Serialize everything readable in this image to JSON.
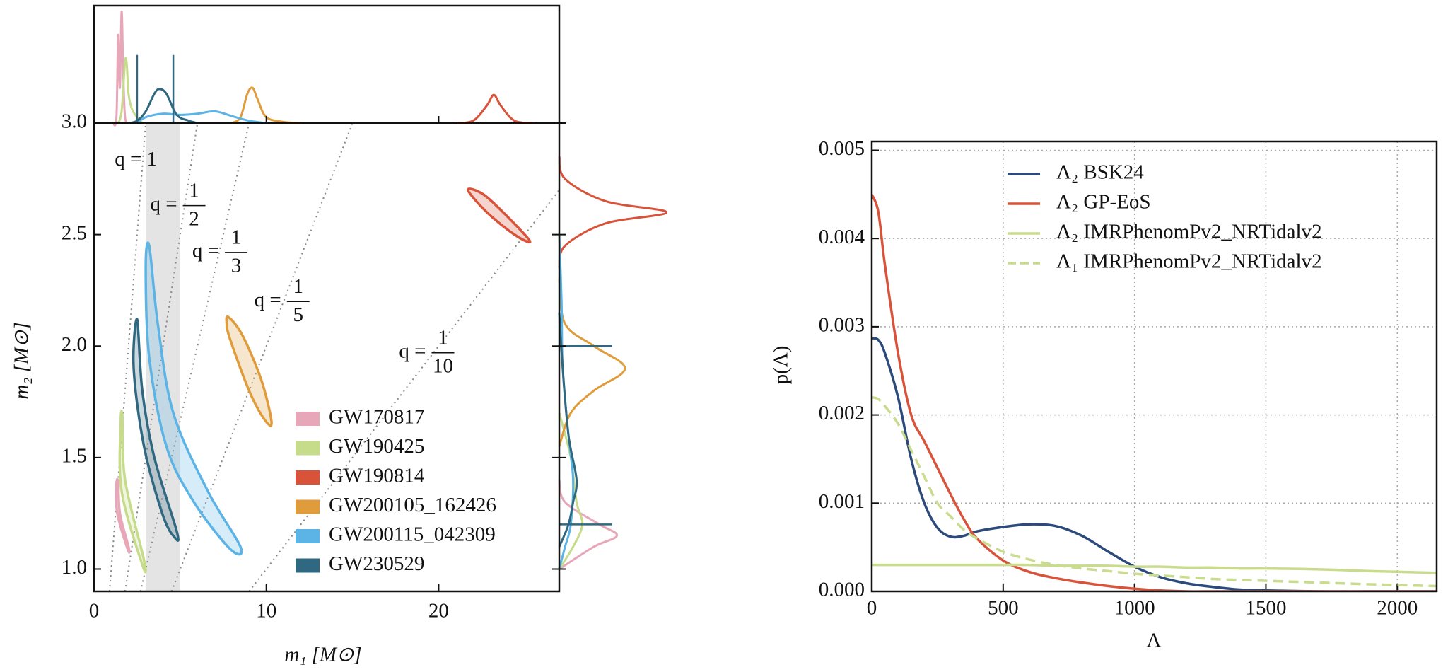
{
  "chart_data": [
    {
      "type": "contour",
      "x_label": "m₁ [M⊙]",
      "y_label": "m₂ [M⊙]",
      "xlim": [
        0,
        27
      ],
      "ylim": [
        0.9,
        3.0
      ],
      "xticks": [
        0,
        10,
        20
      ],
      "yticks": [
        {
          "value": 1,
          "label": "1.0"
        },
        1.5,
        {
          "value": 2,
          "label": "2.0"
        },
        2.5,
        {
          "value": 3,
          "label": "3.0"
        }
      ],
      "marginal_density_lim": [
        0,
        1
      ],
      "shaded_xrange": [
        3,
        5
      ],
      "legend": "lower right",
      "q_lines": [
        {
          "text": "q = 1",
          "q": 1
        },
        {
          "text": "q =",
          "numerator": "1",
          "denominator": "2",
          "q": 0.5
        },
        {
          "text": "q =",
          "numerator": "1",
          "denominator": "3",
          "q": 0.3333
        },
        {
          "text": "q =",
          "numerator": "1",
          "denominator": "5",
          "q": 0.2
        },
        {
          "text": "q =",
          "numerator": "1",
          "denominator": "10",
          "q": 0.1
        }
      ],
      "series": [
        {
          "name": "GW170817",
          "color": "#e8a7b8",
          "x": [
            1.4,
            1.5,
            2.0,
            1.95,
            1.35,
            1.3
          ],
          "y": [
            1.39,
            1.25,
            1.1,
            1.09,
            1.25,
            1.38
          ],
          "m1_marginal": {
            "x": [
              1.1,
              1.3,
              1.4,
              1.5,
              1.6,
              1.7,
              1.8,
              2.0
            ],
            "density": [
              0,
              0.05,
              0.75,
              0.3,
              0.95,
              0.4,
              0.05,
              0
            ]
          },
          "m2_marginal": {
            "y": [
              1.4,
              1.3,
              1.2,
              1.15,
              1.1,
              1.0
            ],
            "density": [
              0,
              0.05,
              0.35,
              0.5,
              0.3,
              0
            ]
          }
        },
        {
          "name": "GW190425",
          "color": "#c6dc8a",
          "x": [
            1.65,
            1.8,
            2.9,
            2.8,
            1.6,
            1.55
          ],
          "y": [
            1.68,
            1.4,
            1.04,
            1.02,
            1.35,
            1.66
          ],
          "m1_marginal": {
            "x": [
              1.4,
              1.6,
              1.8,
              1.9,
              2.0,
              2.2,
              2.5,
              2.8
            ],
            "density": [
              0,
              0.1,
              0.52,
              0.5,
              0.25,
              0.12,
              0.05,
              0
            ]
          },
          "m2_marginal": {
            "y": [
              1.7,
              1.5,
              1.3,
              1.2,
              1.1,
              1.0
            ],
            "density": [
              0,
              0.1,
              0.15,
              0.2,
              0.12,
              0
            ]
          }
        },
        {
          "name": "GW190814",
          "color": "#d9533b",
          "x": [
            21.7,
            22.6,
            24.0,
            25.3,
            24.4,
            22.8
          ],
          "y": [
            2.7,
            2.68,
            2.58,
            2.47,
            2.5,
            2.6
          ],
          "m1_marginal": {
            "x": [
              21,
              22,
              22.8,
              23.2,
              23.6,
              24.4,
              25.5
            ],
            "density": [
              0,
              0.02,
              0.15,
              0.24,
              0.15,
              0.02,
              0
            ]
          },
          "m2_marginal": {
            "y": [
              2.85,
              2.75,
              2.65,
              2.6,
              2.55,
              2.45,
              2.35
            ],
            "density": [
              0,
              0.05,
              0.4,
              0.93,
              0.4,
              0.05,
              0
            ]
          }
        },
        {
          "name": "GW200105_162426",
          "color": "#e09c3a",
          "x": [
            7.8,
            8.6,
            9.7,
            10.3,
            9.9,
            9.0,
            7.9,
            7.7
          ],
          "y": [
            2.13,
            2.05,
            1.85,
            1.66,
            1.67,
            1.8,
            2.03,
            2.1
          ],
          "m1_marginal": {
            "x": [
              8,
              8.5,
              8.9,
              9.2,
              9.5,
              10,
              11,
              12
            ],
            "density": [
              0,
              0.05,
              0.25,
              0.3,
              0.2,
              0.05,
              0.01,
              0
            ]
          },
          "m2_marginal": {
            "y": [
              2.3,
              2.1,
              2.0,
              1.9,
              1.8,
              1.7,
              1.55
            ],
            "density": [
              0,
              0.05,
              0.3,
              0.57,
              0.3,
              0.1,
              0
            ]
          }
        },
        {
          "name": "GW200115_042309",
          "color": "#5bb4e5",
          "x": [
            3.2,
            3.7,
            4.6,
            6.6,
            8.5,
            7.9,
            5.8,
            4.2,
            3.2,
            3.0
          ],
          "y": [
            2.45,
            2.1,
            1.7,
            1.35,
            1.1,
            1.09,
            1.3,
            1.55,
            1.95,
            2.35
          ],
          "m1_marginal": {
            "x": [
              2.5,
              3,
              4,
              5,
              6,
              7,
              8,
              9,
              10
            ],
            "density": [
              0,
              0.05,
              0.08,
              0.07,
              0.08,
              0.1,
              0.06,
              0.02,
              0
            ]
          },
          "m2_marginal": {
            "y": [
              2.5,
              2.2,
              1.9,
              1.6,
              1.4,
              1.2,
              1.1,
              1.0
            ],
            "density": [
              0,
              0.02,
              0.03,
              0.08,
              0.12,
              0.1,
              0.05,
              0
            ]
          }
        },
        {
          "name": "GW230529",
          "color": "#2f6880",
          "x": [
            2.5,
            2.8,
            3.5,
            4.8,
            4.7,
            4.0,
            2.9,
            2.3
          ],
          "y": [
            2.12,
            1.8,
            1.5,
            1.17,
            1.14,
            1.24,
            1.55,
            1.9
          ],
          "m1_marginal": {
            "x": [
              2,
              2.5,
              3,
              3.5,
              3.8,
              4.2,
              4.8,
              5.5,
              6
            ],
            "density": [
              0,
              0.02,
              0.1,
              0.25,
              0.29,
              0.25,
              0.07,
              0.02,
              0
            ]
          },
          "m2_marginal": {
            "y": [
              2.15,
              1.9,
              1.6,
              1.4,
              1.3,
              1.2,
              1.1
            ],
            "density": [
              0,
              0.03,
              0.08,
              0.15,
              0.12,
              0.08,
              0
            ]
          },
          "m1_interval": [
            2.5,
            4.6
          ],
          "m2_interval": [
            1.2,
            2.0
          ]
        }
      ]
    },
    {
      "type": "line",
      "x_label": "Λ",
      "y_label": "p(Λ)",
      "xlim": [
        0,
        2150
      ],
      "ylim": [
        0,
        0.0051
      ],
      "xticks": [
        0,
        500,
        1000,
        1500,
        2000
      ],
      "yticks": [
        {
          "value": 0,
          "label": "0.000"
        },
        0.001,
        0.002,
        0.003,
        0.004,
        0.005
      ],
      "grid": true,
      "legend": "upper center",
      "x": [
        0,
        25,
        50,
        100,
        150,
        200,
        250,
        300,
        350,
        400,
        500,
        600,
        700,
        800,
        900,
        1000,
        1100,
        1200,
        1300,
        1400,
        1500,
        1700,
        1900,
        2150
      ],
      "series": [
        {
          "name": "Λ₂ BSK24",
          "color": "#2c4a7c",
          "dashed": false,
          "values": [
            0.00287,
            0.00285,
            0.0027,
            0.0022,
            0.0015,
            0.001,
            0.00072,
            0.00062,
            0.00063,
            0.00068,
            0.00073,
            0.00076,
            0.00074,
            0.00063,
            0.00045,
            0.00028,
            0.00016,
            9e-05,
            5e-05,
            2e-05,
            1e-05,
            0,
            0,
            0
          ]
        },
        {
          "name": "Λ₂ GP-EoS",
          "color": "#d9533b",
          "dashed": false,
          "values": [
            0.0045,
            0.0043,
            0.0037,
            0.0027,
            0.002,
            0.0017,
            0.0014,
            0.0011,
            0.00082,
            0.0006,
            0.00035,
            0.00022,
            0.00015,
            0.0001,
            6e-05,
            3e-05,
            1e-05,
            0,
            0,
            0,
            0,
            0,
            0,
            0
          ]
        },
        {
          "name": "Λ₂ IMRPhenomPv2_NRTidalv2",
          "color": "#c9dc8e",
          "dashed": false,
          "values": [
            0.0003,
            0.0003,
            0.0003,
            0.0003,
            0.0003,
            0.0003,
            0.0003,
            0.0003,
            0.0003,
            0.0003,
            0.0003,
            0.0003,
            0.00029,
            0.00029,
            0.00029,
            0.00028,
            0.00028,
            0.00027,
            0.00027,
            0.00026,
            0.00026,
            0.00025,
            0.00023,
            0.00021
          ]
        },
        {
          "name": "Λ₁ IMRPhenomPv2_NRTidalv2",
          "color": "#c9dc8e",
          "dashed": true,
          "values": [
            0.0022,
            0.00218,
            0.0021,
            0.0019,
            0.0016,
            0.0013,
            0.001,
            0.00085,
            0.0007,
            0.0006,
            0.00045,
            0.00036,
            0.0003,
            0.00026,
            0.00023,
            0.0002,
            0.00018,
            0.00016,
            0.00014,
            0.00013,
            0.00012,
            0.0001,
            8e-05,
            6e-05
          ]
        }
      ]
    }
  ]
}
